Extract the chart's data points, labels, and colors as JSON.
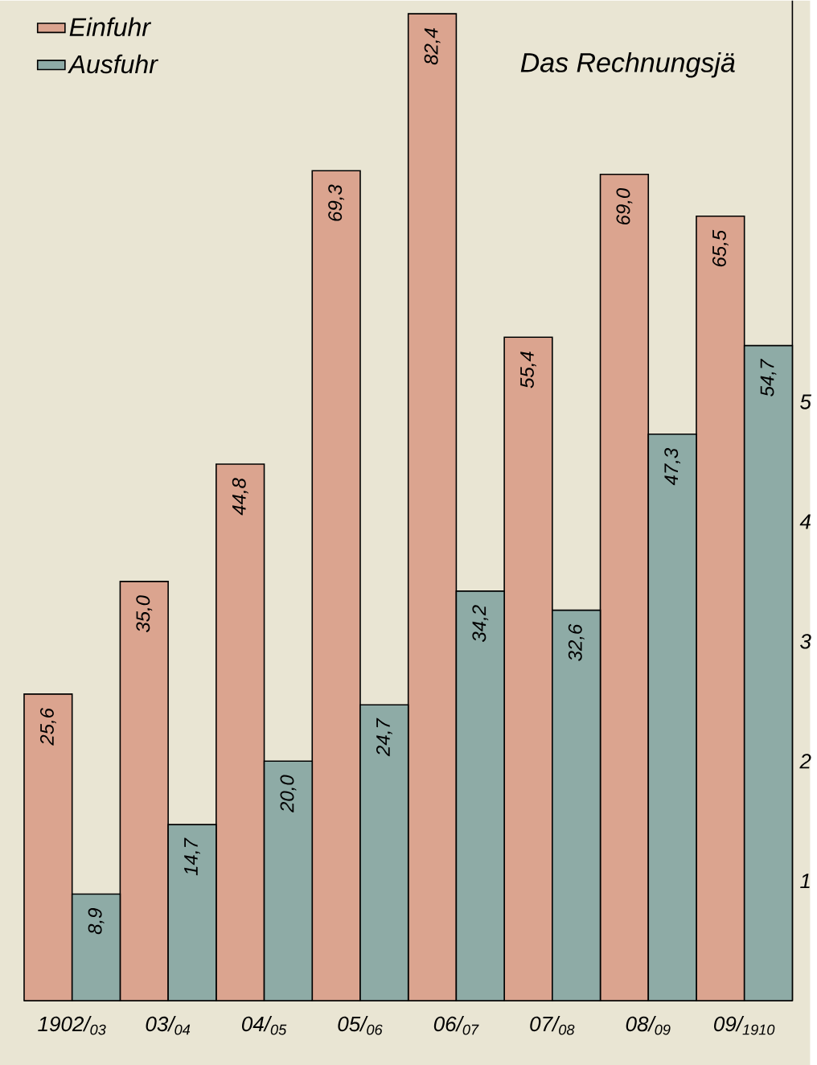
{
  "chart_data": {
    "type": "bar",
    "title": "Das Rechnungsjä",
    "categories": [
      "1902/$_{03}$",
      "03/$_{04}$",
      "04/$_{05}$",
      "05/$_{06}$",
      "06/$_{07}$",
      "07/$_{08}$",
      "08/$_{09}$",
      "09/$_{1910}$"
    ],
    "series": [
      {
        "name": "Einfuhr",
        "color": "#dba48f",
        "values": [
          25.6,
          35.0,
          44.8,
          69.3,
          82.4,
          55.4,
          69.0,
          65.5
        ],
        "value_labels": [
          "25,6",
          "35,0",
          "44,8",
          "69,3",
          "82,4",
          "55,4",
          "69,0",
          "65,5"
        ]
      },
      {
        "name": "Ausfuhr",
        "color": "#8eaba6",
        "values": [
          8.9,
          14.7,
          20.0,
          24.7,
          34.2,
          32.6,
          47.3,
          54.7
        ],
        "value_labels": [
          "8,9",
          "14,7",
          "20,0",
          "24,7",
          "34,2",
          "32,6",
          "47,3",
          "54,7"
        ]
      }
    ],
    "ylim": [
      0,
      83.5
    ],
    "yticks": [
      {
        "value": 10,
        "label": null
      },
      {
        "value": 20,
        "label": null
      },
      {
        "value": 30,
        "label": null
      },
      {
        "value": 40,
        "label": null
      },
      {
        "value": 50,
        "label": null
      }
    ],
    "annotations": [
      "1",
      "2",
      "3",
      "4",
      "5"
    ],
    "legend": "top left",
    "grid": false
  }
}
